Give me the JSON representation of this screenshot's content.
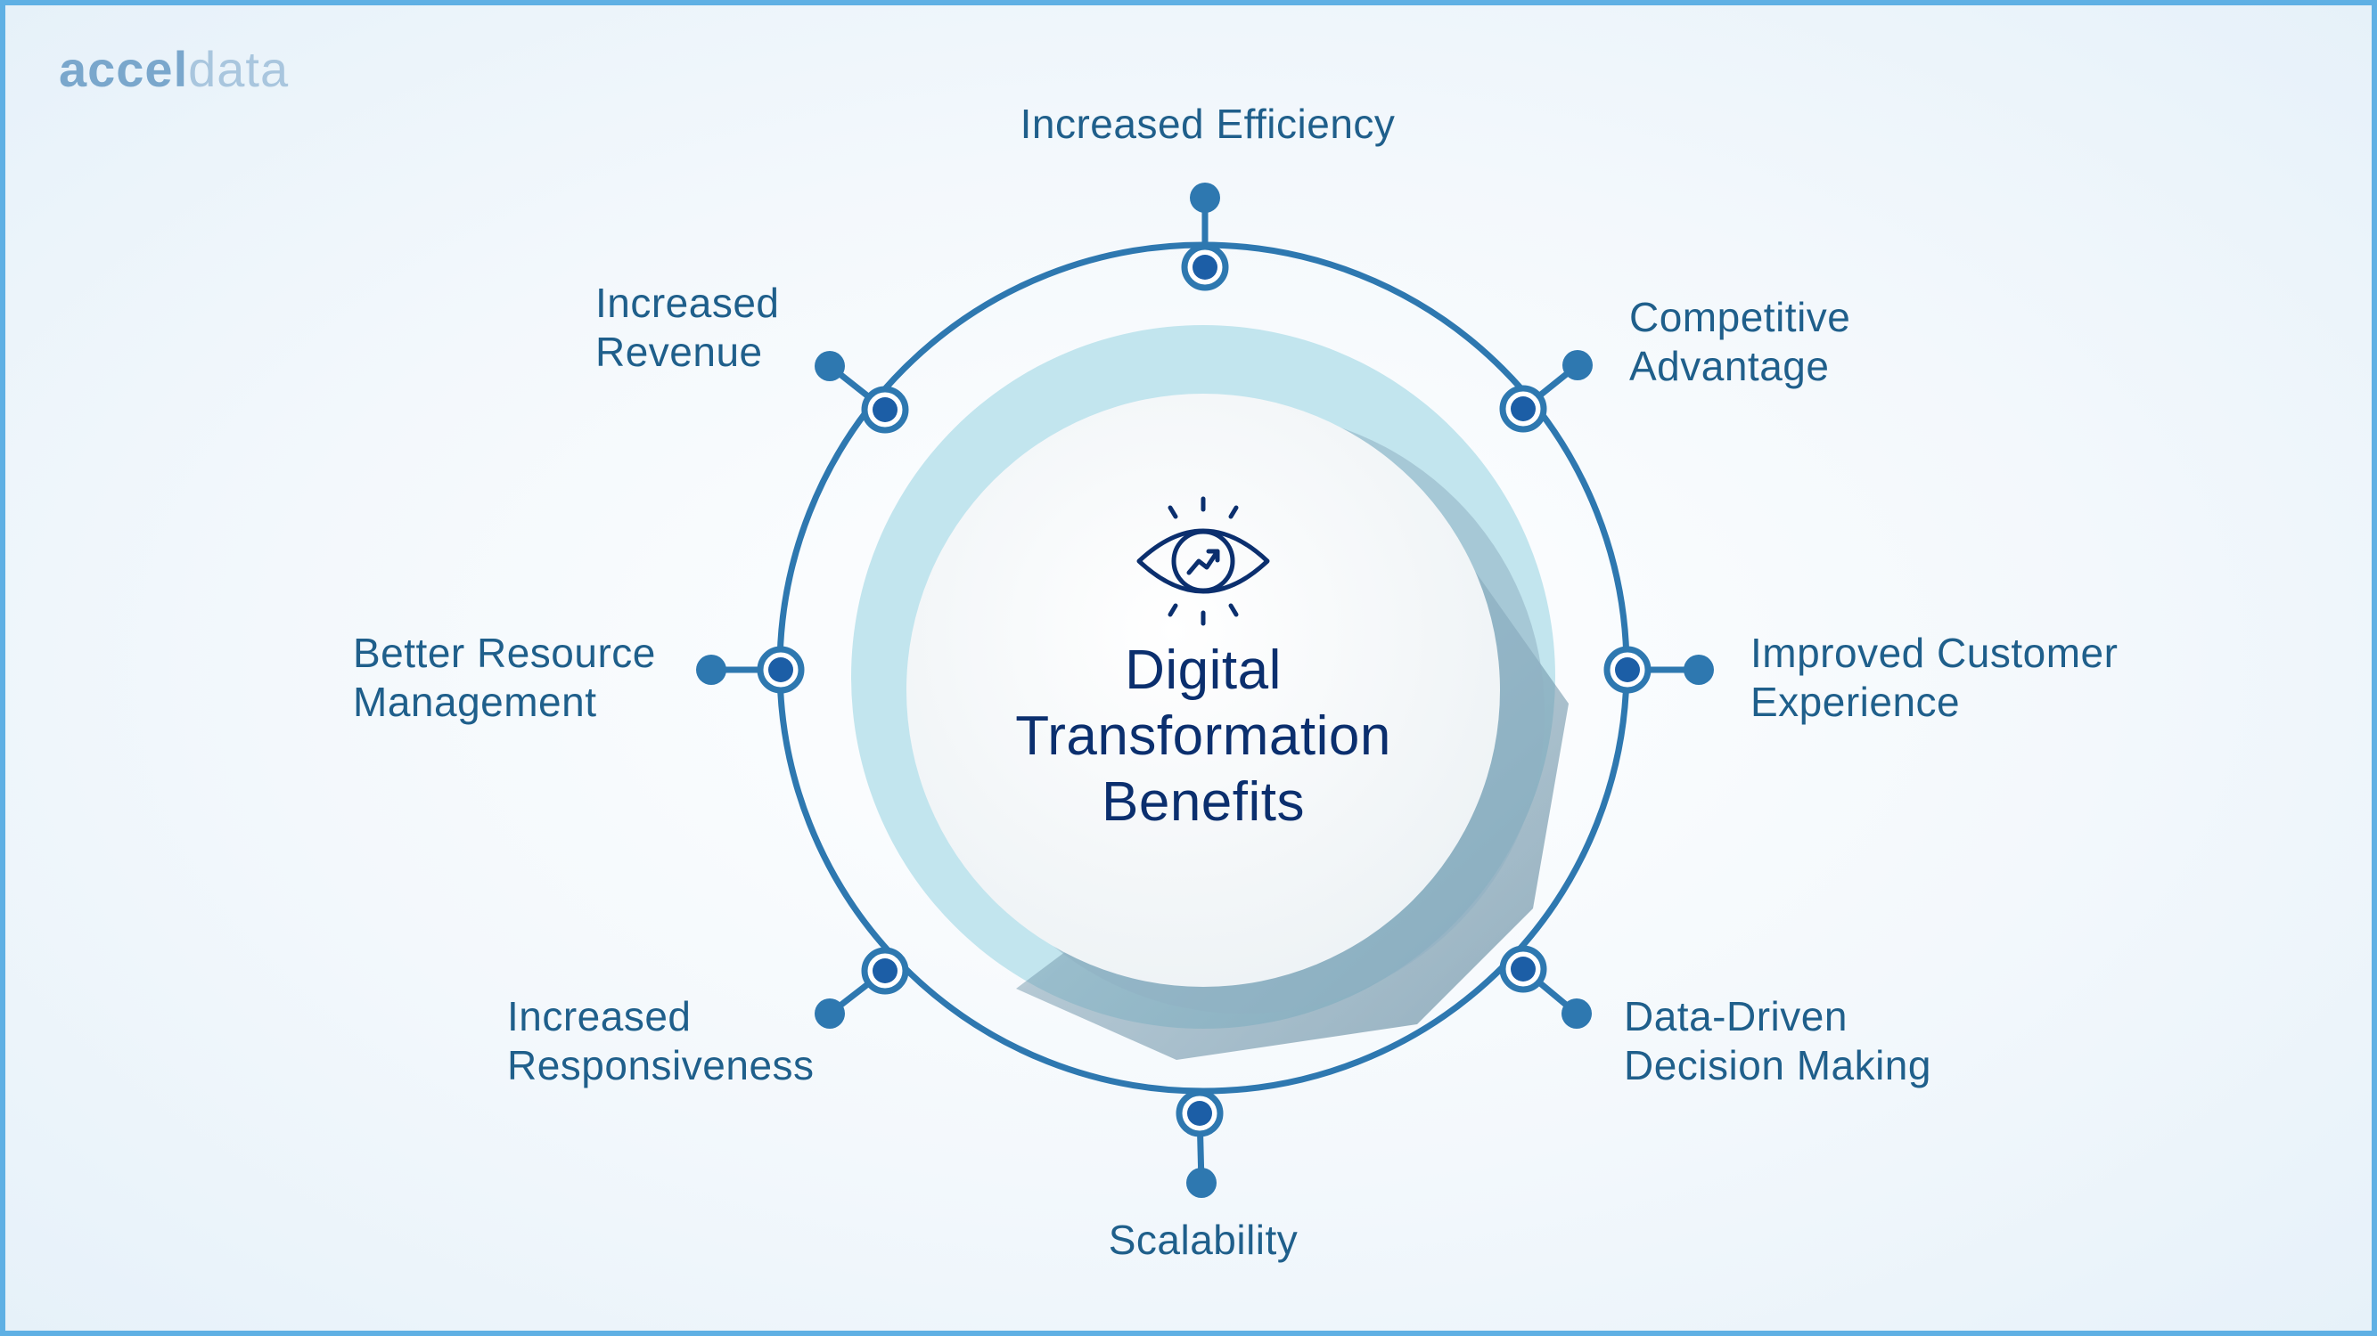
{
  "brand": {
    "part1": "accel",
    "part2": "data"
  },
  "center": {
    "icon": "eye-trend-icon",
    "title_lines": [
      "Digital",
      "Transformation",
      "Benefits"
    ]
  },
  "benefits": [
    {
      "lines": [
        "Increased Efficiency"
      ]
    },
    {
      "lines": [
        "Competitive",
        "Advantage"
      ]
    },
    {
      "lines": [
        "Improved Customer",
        "Experience"
      ]
    },
    {
      "lines": [
        "Data-Driven",
        "Decision Making"
      ]
    },
    {
      "lines": [
        "Scalability"
      ]
    },
    {
      "lines": [
        "Increased",
        "Responsiveness"
      ]
    },
    {
      "lines": [
        "Better Resource",
        "Management"
      ]
    },
    {
      "lines": [
        "Increased",
        "Revenue"
      ]
    }
  ],
  "colors": {
    "ring": "#2e78b0",
    "node": "#1c5ea6",
    "inner_band": "#c2e5ee",
    "title": "#0b2f6e",
    "label": "#1f5f8b",
    "border": "#5fb0e4"
  }
}
